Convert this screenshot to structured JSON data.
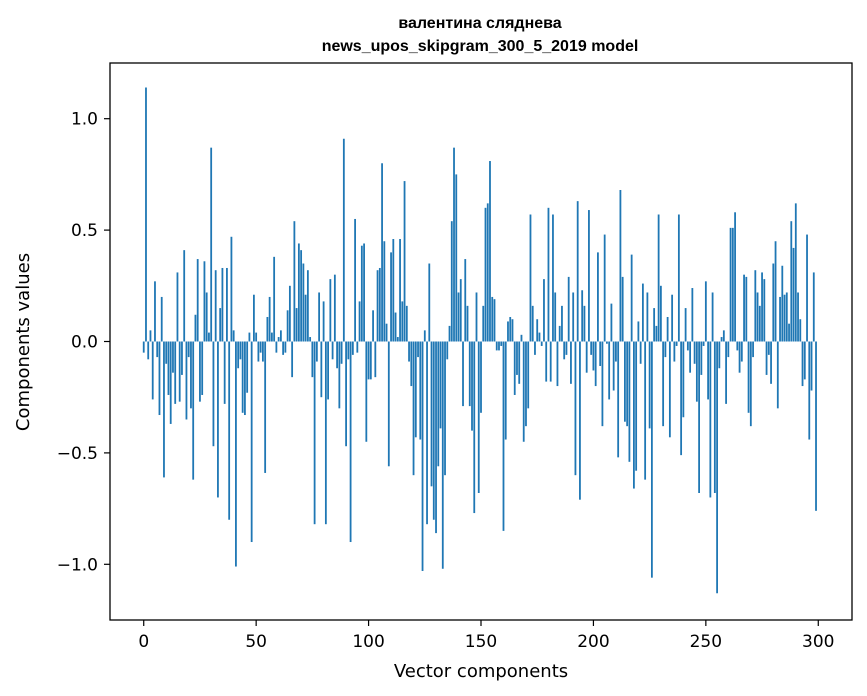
{
  "chart_data": {
    "type": "bar",
    "title": "валентина сляднева",
    "subtitle": "news_upos_skipgram_300_5_2019 model",
    "xlabel": "Vector components",
    "ylabel": "Components values",
    "xlim": [
      -15,
      315
    ],
    "ylim": [
      -1.25,
      1.25
    ],
    "xticks": [
      0,
      50,
      100,
      150,
      200,
      250,
      300
    ],
    "xtick_labels": [
      "0",
      "50",
      "100",
      "150",
      "200",
      "250",
      "300"
    ],
    "yticks": [
      1.0,
      0.5,
      0.0,
      -0.5,
      -1.0
    ],
    "ytick_labels": [
      "1.0",
      "0.5",
      "0.0",
      "−0.5",
      "−1.0"
    ],
    "bar_color": "#1f77b4",
    "grid": false,
    "series": [
      {
        "name": "components",
        "values": [
          -0.05,
          1.14,
          -0.08,
          0.05,
          -0.26,
          0.27,
          -0.07,
          -0.33,
          0.2,
          -0.61,
          -0.1,
          -0.24,
          -0.37,
          -0.14,
          -0.28,
          0.31,
          -0.27,
          -0.15,
          0.41,
          -0.35,
          -0.07,
          -0.3,
          -0.62,
          0.12,
          0.37,
          -0.27,
          -0.24,
          0.36,
          0.22,
          0.04,
          0.87,
          -0.47,
          0.32,
          -0.7,
          0.15,
          0.33,
          -0.28,
          0.33,
          -0.8,
          0.47,
          0.05,
          -1.01,
          -0.12,
          -0.08,
          -0.32,
          -0.33,
          -0.23,
          0.04,
          -0.9,
          0.21,
          0.04,
          -0.09,
          -0.05,
          -0.09,
          -0.59,
          0.11,
          0.2,
          0.04,
          0.38,
          -0.05,
          0.02,
          0.05,
          -0.06,
          -0.05,
          0.14,
          0.25,
          -0.16,
          0.54,
          0.15,
          0.44,
          0.41,
          0.35,
          0.21,
          0.32,
          0.02,
          -0.16,
          -0.82,
          -0.09,
          0.22,
          -0.25,
          0.18,
          -0.82,
          -0.26,
          0.28,
          -0.08,
          0.3,
          -0.12,
          -0.3,
          -0.1,
          0.91,
          -0.47,
          -0.08,
          -0.9,
          -0.06,
          0.55,
          -0.05,
          0.18,
          0.43,
          0.44,
          -0.45,
          -0.17,
          -0.17,
          0.14,
          -0.16,
          0.32,
          0.33,
          0.8,
          0.45,
          0.08,
          -0.56,
          0.4,
          0.46,
          0.13,
          0.02,
          0.46,
          0.18,
          0.72,
          0.16,
          -0.09,
          -0.2,
          -0.6,
          -0.43,
          -0.07,
          -0.44,
          -1.03,
          0.05,
          -0.82,
          0.35,
          -0.65,
          -0.8,
          -0.86,
          -0.56,
          -0.39,
          -1.02,
          -0.6,
          -0.08,
          0.07,
          0.54,
          0.87,
          0.75,
          0.22,
          0.28,
          -0.29,
          0.37,
          0.16,
          -0.29,
          -0.4,
          -0.77,
          0.22,
          -0.68,
          -0.32,
          0.16,
          0.6,
          0.62,
          0.81,
          0.2,
          0.19,
          -0.04,
          -0.04,
          -0.02,
          -0.85,
          -0.44,
          0.09,
          0.11,
          0.1,
          -0.24,
          -0.15,
          -0.19,
          0.03,
          -0.45,
          -0.38,
          -0.3,
          0.57,
          0.16,
          -0.06,
          0.1,
          0.04,
          -0.02,
          0.28,
          -0.18,
          0.6,
          -0.18,
          0.57,
          0.22,
          -0.2,
          0.07,
          0.16,
          -0.08,
          -0.06,
          0.29,
          -0.19,
          0.22,
          -0.6,
          0.63,
          -0.71,
          0.23,
          0.16,
          -0.14,
          0.59,
          -0.06,
          -0.13,
          -0.2,
          0.4,
          -0.11,
          -0.38,
          0.48,
          -0.01,
          -0.26,
          0.17,
          -0.22,
          -0.09,
          -0.52,
          0.68,
          0.29,
          -0.36,
          -0.38,
          -0.54,
          0.39,
          -0.66,
          -0.58,
          0.09,
          -0.1,
          0.26,
          -0.62,
          0.22,
          -0.39,
          -1.06,
          0.15,
          0.07,
          0.57,
          0.25,
          -0.38,
          -0.07,
          0.11,
          -0.43,
          0.21,
          -0.09,
          -0.02,
          0.57,
          -0.51,
          -0.34,
          0.15,
          -0.04,
          -0.14,
          0.24,
          -0.1,
          -0.27,
          -0.68,
          -0.15,
          -0.02,
          0.27,
          -0.26,
          -0.7,
          0.22,
          -0.68,
          -1.13,
          -0.12,
          0.02,
          0.05,
          -0.28,
          -0.07,
          0.51,
          0.51,
          0.58,
          -0.04,
          -0.14,
          -0.09,
          0.3,
          0.29,
          -0.32,
          -0.38,
          -0.07,
          0.32,
          0.22,
          0.16,
          0.31,
          0.28,
          -0.15,
          -0.06,
          -0.19,
          0.35,
          0.45,
          -0.3,
          0.2,
          0.34,
          0.21,
          0.22,
          0.08,
          0.54,
          0.42,
          0.62,
          0.22,
          0.1,
          -0.2,
          -0.17,
          0.48,
          -0.44,
          -0.22,
          0.31,
          -0.76
        ]
      }
    ]
  }
}
